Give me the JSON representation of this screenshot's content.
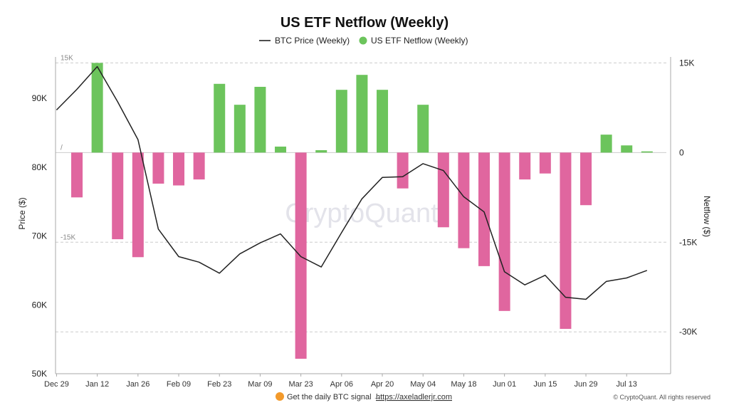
{
  "chart_data": {
    "type": "bar+line",
    "title": "US ETF Netflow (Weekly)",
    "legend": {
      "placement": "top-center",
      "items": [
        {
          "label": "BTC Price (Weekly)",
          "kind": "line",
          "color": "#222222"
        },
        {
          "label": "US ETF Netflow (Weekly)",
          "kind": "dot",
          "color": "#6cc45c"
        }
      ]
    },
    "x_tick_labels": [
      "Dec 29",
      "Jan 12",
      "Jan 26",
      "Feb 09",
      "Feb 23",
      "Mar 09",
      "Mar 23",
      "Apr 06",
      "Apr 20",
      "May 04",
      "May 18",
      "Jun 01",
      "Jun 15",
      "Jun 29",
      "Jul 13"
    ],
    "left_axis": {
      "title": "Price ($)",
      "range": [
        50000,
        96000
      ],
      "tick_values": [
        50000,
        60000,
        70000,
        80000,
        90000
      ],
      "tick_labels": [
        "50K",
        "60K",
        "70K",
        "80K",
        "90K"
      ]
    },
    "right_axis": {
      "title": "Netflow ($)",
      "range": [
        -37000,
        16000
      ],
      "tick_values": [
        15000,
        0,
        -15000,
        -30000
      ],
      "tick_labels": [
        "15K",
        "0",
        "-15K",
        "-30K"
      ]
    },
    "inner_labels": [
      {
        "text": "15K",
        "value": 15000
      },
      {
        "text": "/",
        "value": 0
      },
      {
        "text": "-15K",
        "value": -15000
      }
    ],
    "netflow_bars": [
      {
        "week": 1,
        "value": -7500
      },
      {
        "week": 2,
        "value": 15000
      },
      {
        "week": 3,
        "value": -14500
      },
      {
        "week": 4,
        "value": -17500
      },
      {
        "week": 5,
        "value": -5200
      },
      {
        "week": 6,
        "value": -5500
      },
      {
        "week": 7,
        "value": -4500
      },
      {
        "week": 8,
        "value": 11500
      },
      {
        "week": 9,
        "value": 8000
      },
      {
        "week": 10,
        "value": 11000
      },
      {
        "week": 11,
        "value": 1000
      },
      {
        "week": 12,
        "value": -34500
      },
      {
        "week": 13,
        "value": 400
      },
      {
        "week": 14,
        "value": 10500
      },
      {
        "week": 15,
        "value": 13000
      },
      {
        "week": 16,
        "value": 10500
      },
      {
        "week": 17,
        "value": -6000
      },
      {
        "week": 18,
        "value": 8000
      },
      {
        "week": 19,
        "value": -12500
      },
      {
        "week": 20,
        "value": -16000
      },
      {
        "week": 21,
        "value": -19000
      },
      {
        "week": 22,
        "value": -26500
      },
      {
        "week": 23,
        "value": -4500
      },
      {
        "week": 24,
        "value": -3500
      },
      {
        "week": 25,
        "value": -29500
      },
      {
        "week": 26,
        "value": -8800
      },
      {
        "week": 27,
        "value": 3000
      },
      {
        "week": 28,
        "value": 1200
      },
      {
        "week": 29,
        "value": 200
      }
    ],
    "btc_price_line": [
      {
        "week": 0,
        "value": 88300
      },
      {
        "week": 1,
        "value": 91300
      },
      {
        "week": 2,
        "value": 94600
      },
      {
        "week": 3,
        "value": 89500
      },
      {
        "week": 4,
        "value": 84000
      },
      {
        "week": 5,
        "value": 71000
      },
      {
        "week": 6,
        "value": 67000
      },
      {
        "week": 7,
        "value": 66200
      },
      {
        "week": 8,
        "value": 64600
      },
      {
        "week": 9,
        "value": 67400
      },
      {
        "week": 10,
        "value": 69000
      },
      {
        "week": 11,
        "value": 70300
      },
      {
        "week": 12,
        "value": 67000
      },
      {
        "week": 13,
        "value": 65500
      },
      {
        "week": 14,
        "value": 70500
      },
      {
        "week": 15,
        "value": 75400
      },
      {
        "week": 16,
        "value": 78500
      },
      {
        "week": 17,
        "value": 78600
      },
      {
        "week": 18,
        "value": 80500
      },
      {
        "week": 19,
        "value": 79500
      },
      {
        "week": 20,
        "value": 75700
      },
      {
        "week": 21,
        "value": 73500
      },
      {
        "week": 22,
        "value": 64800
      },
      {
        "week": 23,
        "value": 62900
      },
      {
        "week": 24,
        "value": 64300
      },
      {
        "week": 25,
        "value": 61100
      },
      {
        "week": 26,
        "value": 60800
      },
      {
        "week": 27,
        "value": 63400
      },
      {
        "week": 28,
        "value": 63900
      },
      {
        "week": 29,
        "value": 65000
      }
    ],
    "colors": {
      "positive": "#6cc45c",
      "negative": "#e0669f",
      "line": "#222222",
      "grid": "#cccccc"
    },
    "watermark": "CryptoQuant",
    "footer": {
      "text": "Get the daily BTC signal →",
      "link": "https://axeladlerjr.com",
      "copyright": "© CryptoQuant. All rights reserved"
    }
  }
}
